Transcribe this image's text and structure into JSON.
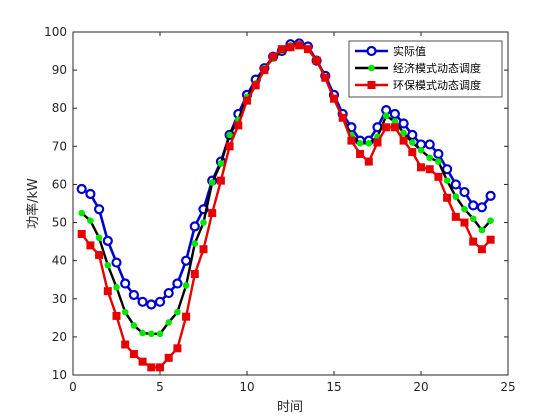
{
  "chart_data": {
    "type": "line",
    "xlabel": "时间",
    "ylabel": "功率/kW",
    "xlim": [
      0,
      25
    ],
    "ylim": [
      10,
      100
    ],
    "xticks": [
      0,
      5,
      10,
      15,
      20,
      25
    ],
    "yticks": [
      10,
      20,
      30,
      40,
      50,
      60,
      70,
      80,
      90,
      100
    ],
    "grid": false,
    "legend_position": "top-right",
    "x": [
      0.5,
      1,
      1.5,
      2,
      2.5,
      3,
      3.5,
      4,
      4.5,
      5,
      5.5,
      6,
      6.5,
      7,
      7.5,
      8,
      8.5,
      9,
      9.5,
      10,
      10.5,
      11,
      11.5,
      12,
      12.5,
      13,
      13.5,
      14,
      14.5,
      15,
      15.5,
      16,
      16.5,
      17,
      17.5,
      18,
      18.5,
      19,
      19.5,
      20,
      20.5,
      21,
      21.5,
      22,
      22.5,
      23,
      23.5,
      24
    ],
    "series": [
      {
        "name": "实际值",
        "color": "#0000cc",
        "marker": "circle",
        "values": [
          58.8,
          57.5,
          53.5,
          45.2,
          39.5,
          34.0,
          31.0,
          29.2,
          28.5,
          29.2,
          31.5,
          34.0,
          40.0,
          49.0,
          53.5,
          61.0,
          66.0,
          73.0,
          78.5,
          83.5,
          87.5,
          90.5,
          93.5,
          95.0,
          96.8,
          97.0,
          96.2,
          92.5,
          88.5,
          83.5,
          78.5,
          75.0,
          71.5,
          71.5,
          75.0,
          79.5,
          78.5,
          76.0,
          73.0,
          70.5,
          70.5,
          68.0,
          64.0,
          60.0,
          58.0,
          54.5,
          54.0,
          57.0
        ]
      },
      {
        "name": "经济模式动态调度",
        "color": "#00e600",
        "marker": "dot",
        "values": [
          52.5,
          50.5,
          46.0,
          38.8,
          33.0,
          26.5,
          23.0,
          21.0,
          20.8,
          20.8,
          23.8,
          26.5,
          33.5,
          44.5,
          50.0,
          60.5,
          65.5,
          73.0,
          77.0,
          83.0,
          86.5,
          90.5,
          93.0,
          95.0,
          96.5,
          96.8,
          95.5,
          92.8,
          88.0,
          82.5,
          77.5,
          73.0,
          70.8,
          70.8,
          72.5,
          78.0,
          76.5,
          73.5,
          71.0,
          69.0,
          67.0,
          66.0,
          61.0,
          56.8,
          53.5,
          51.0,
          48.0,
          50.5
        ]
      },
      {
        "name": "环保模式动态调度",
        "color": "#e60000",
        "marker": "square",
        "values": [
          47.0,
          44.0,
          41.5,
          32.0,
          25.5,
          18.0,
          15.5,
          13.5,
          12.0,
          12.0,
          14.5,
          17.0,
          25.3,
          36.5,
          43.0,
          52.5,
          61.0,
          70.0,
          75.5,
          82.0,
          86.0,
          90.0,
          93.5,
          95.5,
          96.0,
          96.5,
          95.5,
          92.5,
          88.0,
          82.5,
          77.5,
          71.5,
          68.0,
          66.0,
          71.0,
          75.0,
          75.0,
          71.5,
          68.5,
          64.5,
          64.0,
          62.0,
          56.5,
          51.5,
          50.0,
          45.0,
          43.0,
          45.5
        ]
      }
    ]
  }
}
